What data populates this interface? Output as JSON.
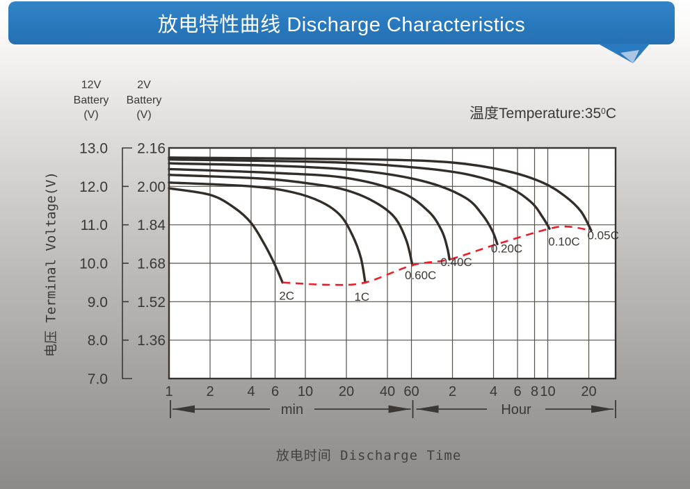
{
  "header": {
    "title": "放电特性曲线 Discharge Characteristics"
  },
  "annotations": {
    "temperature": {
      "prefix": "温度Temperature:35",
      "sup": "0",
      "suffix": "C"
    }
  },
  "axes": {
    "y12_header": "12V\nBattery\n(V)",
    "y2_header": "2V\nBattery\n(V)",
    "y_title": "电压 Terminal Voltage(V)",
    "x_title": "放电时间 Discharge Time",
    "x_unit_min": "min",
    "x_unit_hour": "Hour"
  },
  "style": {
    "banner_blue": "#2a7abf",
    "tail_light": "#a9c6e2",
    "curve_color": "#332d29",
    "grid_color": "#55504c",
    "border_color": "#38332f",
    "text_color": "#3c3733",
    "cutoff_red": "#e81e28",
    "plot_bg": "#ffffff"
  },
  "chart_data": {
    "type": "line",
    "title": "放电特性曲线 Discharge Characteristics",
    "xlabel": "放电时间 Discharge Time",
    "ylabel": "电压 Terminal Voltage(V)",
    "temperature": "35°C",
    "x_scale": "log",
    "x_unit": "minutes",
    "x_range_minutes": [
      1,
      1900
    ],
    "y_range_12v": [
      7.0,
      13.0
    ],
    "grid": true,
    "y_axis_12v": {
      "header": "12V Battery (V)",
      "tick_labels": [
        "13.0",
        "12.0",
        "11.0",
        "10.0",
        "9.0",
        "8.0",
        "7.0"
      ],
      "tick_values": [
        13.0,
        12.0,
        11.0,
        10.0,
        9.0,
        8.0,
        7.0
      ]
    },
    "y_axis_2v": {
      "header": "2V Battery (V)",
      "tick_labels": [
        "2.16",
        "2.00",
        "1.84",
        "1.68",
        "1.52",
        "1.36"
      ],
      "tick_values": [
        2.16,
        2.0,
        1.84,
        1.68,
        1.52,
        1.36
      ]
    },
    "x_ticks_min": [
      {
        "t": 1,
        "label": "1"
      },
      {
        "t": 2,
        "label": "2"
      },
      {
        "t": 4,
        "label": "4"
      },
      {
        "t": 6,
        "label": "6"
      },
      {
        "t": 10,
        "label": "10"
      },
      {
        "t": 20,
        "label": "20"
      },
      {
        "t": 40,
        "label": "40"
      },
      {
        "t": 60,
        "label": "60"
      }
    ],
    "x_ticks_hour": [
      {
        "t": 120,
        "label": "2"
      },
      {
        "t": 240,
        "label": "4"
      },
      {
        "t": 360,
        "label": "6"
      },
      {
        "t": 480,
        "label": "8"
      },
      {
        "t": 600,
        "label": "10"
      },
      {
        "t": 1200,
        "label": "20"
      }
    ],
    "series": [
      {
        "name": "2C",
        "label_at": [
          7.3,
          9.05
        ],
        "points": [
          [
            1,
            11.95
          ],
          [
            2,
            11.78
          ],
          [
            3,
            11.45
          ],
          [
            4,
            11.05
          ],
          [
            5,
            10.5
          ],
          [
            6,
            9.95
          ],
          [
            6.8,
            9.5
          ]
        ]
      },
      {
        "name": "1C",
        "label_at": [
          26,
          9.02
        ],
        "points": [
          [
            1,
            12.1
          ],
          [
            4,
            12.0
          ],
          [
            8,
            11.85
          ],
          [
            13,
            11.6
          ],
          [
            18,
            11.25
          ],
          [
            22,
            10.75
          ],
          [
            25.5,
            10.15
          ],
          [
            27.5,
            9.5
          ]
        ]
      },
      {
        "name": "0.60C",
        "label_at": [
          70,
          9.58
        ],
        "points": [
          [
            1,
            12.3
          ],
          [
            5,
            12.2
          ],
          [
            12,
            12.05
          ],
          [
            20,
            11.9
          ],
          [
            32,
            11.6
          ],
          [
            45,
            11.2
          ],
          [
            55,
            10.6
          ],
          [
            61,
            9.95
          ]
        ]
      },
      {
        "name": "0.40C",
        "label_at": [
          128,
          9.93
        ],
        "points": [
          [
            1,
            12.45
          ],
          [
            6,
            12.35
          ],
          [
            20,
            12.22
          ],
          [
            50,
            11.85
          ],
          [
            80,
            11.35
          ],
          [
            100,
            10.85
          ],
          [
            110,
            10.4
          ],
          [
            114,
            10.1
          ]
        ]
      },
      {
        "name": "0.20C",
        "label_at": [
          300,
          10.28
        ],
        "points": [
          [
            1,
            12.6
          ],
          [
            8,
            12.52
          ],
          [
            30,
            12.38
          ],
          [
            80,
            12.1
          ],
          [
            150,
            11.7
          ],
          [
            200,
            11.25
          ],
          [
            235,
            10.85
          ],
          [
            256,
            10.5
          ]
        ]
      },
      {
        "name": "0.10C",
        "label_at": [
          790,
          10.46
        ],
        "points": [
          [
            1,
            12.7
          ],
          [
            15,
            12.63
          ],
          [
            60,
            12.5
          ],
          [
            150,
            12.32
          ],
          [
            300,
            12.0
          ],
          [
            450,
            11.6
          ],
          [
            550,
            11.2
          ],
          [
            618,
            10.9
          ]
        ]
      },
      {
        "name": "0.05C",
        "label_at": [
          1530,
          10.62
        ],
        "points": [
          [
            1,
            12.75
          ],
          [
            30,
            12.7
          ],
          [
            120,
            12.62
          ],
          [
            300,
            12.4
          ],
          [
            550,
            12.1
          ],
          [
            800,
            11.75
          ],
          [
            1050,
            11.35
          ],
          [
            1250,
            10.85
          ]
        ]
      }
    ],
    "cutoff_line": {
      "style": "dashed",
      "color": "#e81e28",
      "points": [
        [
          6.8,
          9.5
        ],
        [
          15,
          9.44
        ],
        [
          27.5,
          9.5
        ],
        [
          61,
          9.95
        ],
        [
          114,
          10.1
        ],
        [
          256,
          10.5
        ],
        [
          618,
          10.9
        ],
        [
          860,
          10.95
        ],
        [
          1250,
          10.85
        ]
      ]
    }
  }
}
